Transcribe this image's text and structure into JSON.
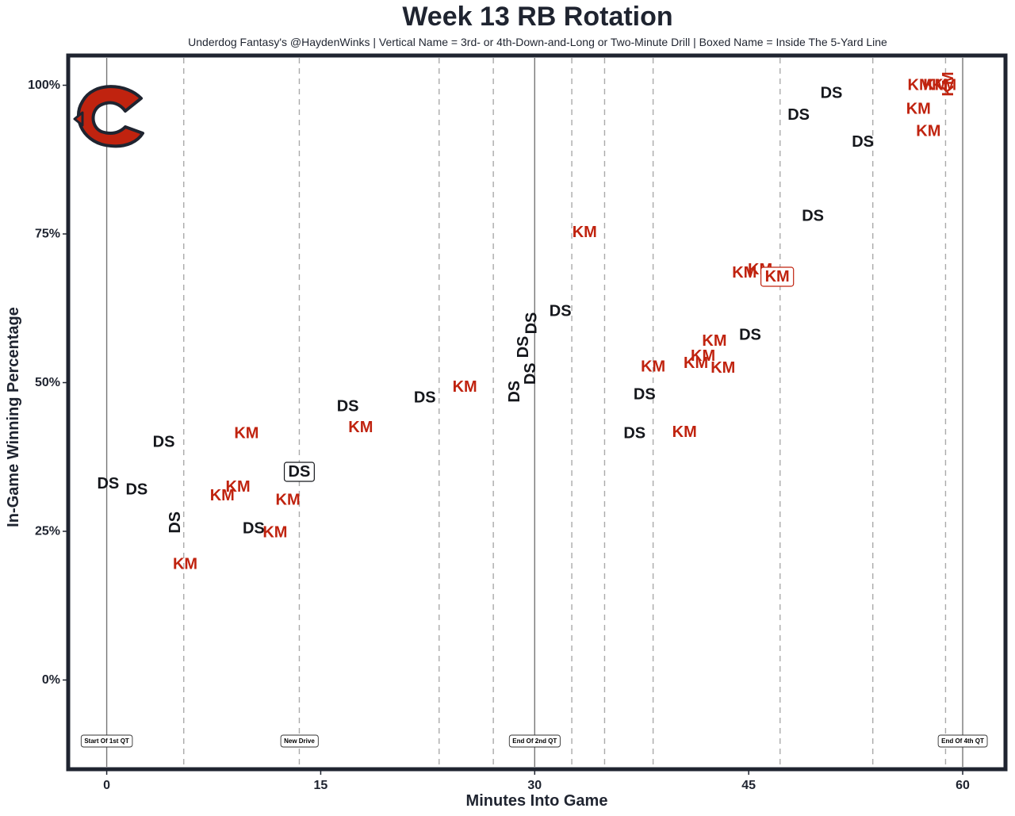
{
  "colors": {
    "DS": "#15171c",
    "KM": "#c0230f",
    "frame": "#1f2430"
  },
  "chart_data": {
    "type": "scatter",
    "title": "Week 13 RB Rotation",
    "subtitle": "Underdog Fantasy's @HaydenWinks | Vertical Name = 3rd- or 4th-Down-and-Long or Two-Minute Drill | Boxed Name = Inside The 5-Yard Line",
    "xlabel": "Minutes Into Game",
    "ylabel": "In-Game Winning Percentage",
    "xlim": [
      -2.7,
      63
    ],
    "ylim": [
      -15,
      105
    ],
    "xticks": [
      {
        "value": 0,
        "label": "0"
      },
      {
        "value": 15,
        "label": "15"
      },
      {
        "value": 30,
        "label": "30"
      },
      {
        "value": 45,
        "label": "45"
      },
      {
        "value": 60,
        "label": "60"
      }
    ],
    "yticks": [
      {
        "value": 0,
        "label": "0%"
      },
      {
        "value": 25,
        "label": "25%"
      },
      {
        "value": 50,
        "label": "50%"
      },
      {
        "value": 75,
        "label": "75%"
      },
      {
        "value": 100,
        "label": "100%"
      }
    ],
    "solid_lines": [
      0,
      30,
      60
    ],
    "drive_lines": [
      5.4,
      13.5,
      23.3,
      27.1,
      32.6,
      34.9,
      38.3,
      47.2,
      53.7,
      58.8
    ],
    "annotations": [
      {
        "x": 0,
        "label": "Start Of 1st QT"
      },
      {
        "x": 13.5,
        "label": "New Drive"
      },
      {
        "x": 30,
        "label": "End Of 2nd QT"
      },
      {
        "x": 60,
        "label": "End Of 4th QT"
      }
    ],
    "points": [
      {
        "player": "DS",
        "x": 0.1,
        "y": 33,
        "style": "normal"
      },
      {
        "player": "DS",
        "x": 2.1,
        "y": 32,
        "style": "normal"
      },
      {
        "player": "DS",
        "x": 4.0,
        "y": 40,
        "style": "normal"
      },
      {
        "player": "DS",
        "x": 4.8,
        "y": 26.5,
        "style": "vertical"
      },
      {
        "player": "KM",
        "x": 5.5,
        "y": 19.5,
        "style": "normal"
      },
      {
        "player": "KM",
        "x": 8.1,
        "y": 31,
        "style": "normal"
      },
      {
        "player": "KM",
        "x": 9.2,
        "y": 32.5,
        "style": "normal"
      },
      {
        "player": "KM",
        "x": 9.8,
        "y": 41.5,
        "style": "normal"
      },
      {
        "player": "DS",
        "x": 10.3,
        "y": 25.5,
        "style": "normal"
      },
      {
        "player": "KM",
        "x": 11.8,
        "y": 24.8,
        "style": "normal"
      },
      {
        "player": "KM",
        "x": 12.7,
        "y": 30.3,
        "style": "normal"
      },
      {
        "player": "DS",
        "x": 13.5,
        "y": 35,
        "style": "boxed"
      },
      {
        "player": "DS",
        "x": 16.9,
        "y": 46,
        "style": "normal"
      },
      {
        "player": "KM",
        "x": 17.8,
        "y": 42.5,
        "style": "normal"
      },
      {
        "player": "DS",
        "x": 22.3,
        "y": 47.5,
        "style": "normal"
      },
      {
        "player": "KM",
        "x": 25.1,
        "y": 49.3,
        "style": "normal"
      },
      {
        "player": "DS",
        "x": 28.6,
        "y": 48.5,
        "style": "vertical"
      },
      {
        "player": "DS",
        "x": 29.2,
        "y": 56,
        "style": "vertical"
      },
      {
        "player": "DS",
        "x": 29.7,
        "y": 51.5,
        "style": "vertical"
      },
      {
        "player": "DS",
        "x": 29.8,
        "y": 60,
        "style": "vertical"
      },
      {
        "player": "DS",
        "x": 31.8,
        "y": 62,
        "style": "normal"
      },
      {
        "player": "KM",
        "x": 33.5,
        "y": 75.3,
        "style": "normal"
      },
      {
        "player": "DS",
        "x": 37.0,
        "y": 41.5,
        "style": "normal"
      },
      {
        "player": "DS",
        "x": 37.7,
        "y": 48,
        "style": "normal"
      },
      {
        "player": "KM",
        "x": 38.3,
        "y": 52.7,
        "style": "normal"
      },
      {
        "player": "KM",
        "x": 40.5,
        "y": 41.7,
        "style": "normal"
      },
      {
        "player": "KM",
        "x": 41.3,
        "y": 53.3,
        "style": "normal"
      },
      {
        "player": "KM",
        "x": 41.8,
        "y": 54.5,
        "style": "normal"
      },
      {
        "player": "KM",
        "x": 42.6,
        "y": 57,
        "style": "normal"
      },
      {
        "player": "KM",
        "x": 43.2,
        "y": 52.5,
        "style": "normal"
      },
      {
        "player": "KM",
        "x": 44.7,
        "y": 68.5,
        "style": "normal"
      },
      {
        "player": "DS",
        "x": 45.1,
        "y": 58,
        "style": "normal"
      },
      {
        "player": "KM",
        "x": 45.8,
        "y": 69,
        "style": "normal"
      },
      {
        "player": "KM",
        "x": 47.0,
        "y": 67.8,
        "style": "boxed"
      },
      {
        "player": "DS",
        "x": 48.5,
        "y": 95,
        "style": "normal"
      },
      {
        "player": "DS",
        "x": 49.5,
        "y": 78,
        "style": "normal"
      },
      {
        "player": "DS",
        "x": 50.8,
        "y": 98.7,
        "style": "normal"
      },
      {
        "player": "DS",
        "x": 53.0,
        "y": 90.5,
        "style": "normal"
      },
      {
        "player": "KM",
        "x": 56.9,
        "y": 96,
        "style": "normal"
      },
      {
        "player": "KM",
        "x": 57.0,
        "y": 100,
        "style": "normal"
      },
      {
        "player": "KM",
        "x": 57.6,
        "y": 92.3,
        "style": "normal"
      },
      {
        "player": "KM",
        "x": 58.1,
        "y": 100,
        "style": "normal"
      },
      {
        "player": "KM",
        "x": 58.7,
        "y": 100,
        "style": "normal"
      },
      {
        "player": "KM",
        "x": 59.0,
        "y": 100.2,
        "style": "vertical"
      }
    ]
  }
}
